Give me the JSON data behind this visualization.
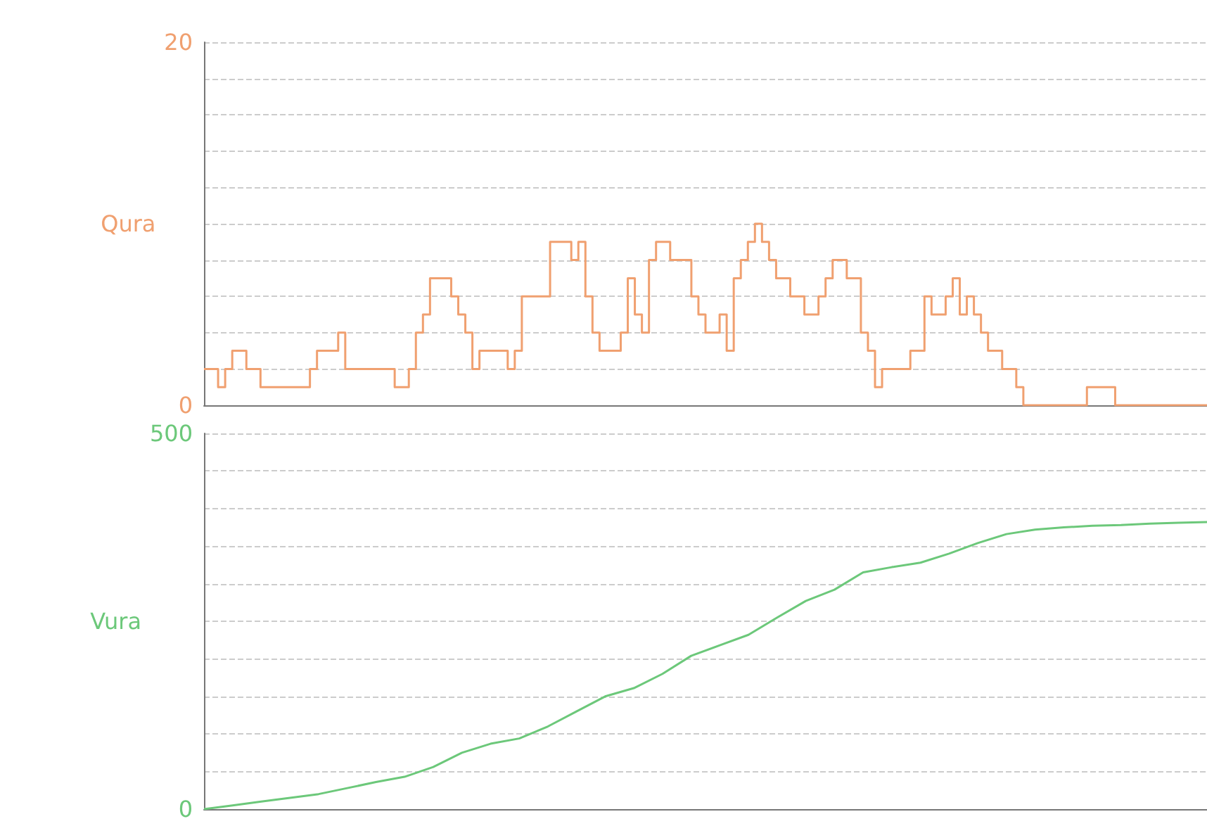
{
  "chart_data": [
    {
      "type": "step",
      "ylabel": "Qura",
      "categories": [
        null,
        null,
        null,
        null,
        null,
        null,
        null,
        null,
        null,
        null,
        null,
        null,
        null,
        null,
        null,
        null,
        null,
        null,
        null,
        null,
        null,
        null,
        null,
        null,
        null,
        null,
        null,
        null,
        null,
        null,
        null,
        null,
        null,
        null,
        null,
        null,
        null,
        null,
        null,
        null,
        null,
        null,
        null,
        null,
        null,
        null,
        null,
        null,
        null,
        null,
        null,
        null,
        null,
        null,
        null,
        null,
        null,
        null,
        null,
        null,
        null,
        null,
        null,
        null,
        null,
        null,
        null,
        null,
        null,
        null,
        null,
        null,
        null,
        null,
        null,
        null,
        null,
        null,
        null,
        null,
        null,
        null,
        null,
        null,
        null,
        null,
        null,
        null,
        null,
        null,
        null,
        null,
        null,
        null,
        null,
        null,
        null,
        null,
        null,
        null,
        null,
        null,
        null,
        null,
        null,
        null,
        null,
        null,
        null,
        null,
        null,
        null,
        null,
        null,
        null,
        null,
        null,
        null,
        null,
        null,
        null,
        null,
        null,
        null,
        null,
        null,
        null,
        null,
        null,
        null,
        null,
        null,
        null,
        null,
        null,
        null,
        null,
        null,
        null,
        null,
        null,
        null,
        null
      ],
      "series": [
        {
          "color": "#f0a070",
          "values": [
            2,
            2,
            1,
            2,
            3,
            3,
            2,
            2,
            1,
            1,
            1,
            1,
            1,
            1,
            1,
            2,
            3,
            3,
            3,
            4,
            2,
            2,
            2,
            2,
            2,
            2,
            2,
            1,
            1,
            2,
            4,
            5,
            7,
            7,
            7,
            6,
            5,
            4,
            2,
            3,
            3,
            3,
            3,
            2,
            3,
            6,
            6,
            6,
            6,
            9,
            9,
            9,
            8,
            9,
            6,
            4,
            3,
            3,
            3,
            4,
            7,
            5,
            4,
            8,
            9,
            9,
            8,
            8,
            8,
            6,
            5,
            4,
            4,
            5,
            3,
            7,
            8,
            9,
            10,
            9,
            8,
            7,
            7,
            6,
            6,
            5,
            5,
            6,
            7,
            8,
            8,
            7,
            7,
            4,
            3,
            1,
            2,
            2,
            2,
            2,
            3,
            3,
            6,
            5,
            5,
            6,
            7,
            5,
            6,
            5,
            4,
            3,
            3,
            2,
            2,
            1,
            0,
            0,
            0,
            0,
            0,
            0,
            0,
            0,
            0,
            1,
            1,
            1,
            1,
            0,
            0,
            0,
            0,
            0,
            0,
            0,
            0,
            0,
            0,
            0,
            0,
            0,
            0
          ]
        }
      ],
      "ylim": [
        0,
        20
      ],
      "yticks": [
        0,
        {
          "value": 2,
          "label": null
        },
        {
          "value": 4,
          "label": null
        },
        {
          "value": 6,
          "label": null
        },
        {
          "value": 8,
          "label": null
        },
        {
          "value": 10,
          "label": null
        },
        {
          "value": 12,
          "label": null
        },
        {
          "value": 14,
          "label": null
        },
        {
          "value": 16,
          "label": null
        },
        {
          "value": 18,
          "label": null
        },
        20
      ],
      "grid": "y",
      "tick_labels": "y"
    },
    {
      "type": "line",
      "ylabel": "Vura",
      "categories": [
        null,
        null,
        null,
        null,
        null,
        null,
        null,
        null,
        null,
        null,
        null,
        null,
        null,
        null,
        null,
        null,
        null,
        null,
        null,
        null,
        null,
        null,
        null,
        null,
        null,
        null,
        null,
        null,
        null,
        null,
        null,
        null,
        null,
        null,
        null,
        null
      ],
      "series": [
        {
          "color": "#6cc87a",
          "values": [
            0,
            5,
            10,
            15,
            20,
            28,
            36,
            43,
            56,
            75,
            87,
            94,
            110,
            130,
            150,
            161,
            180,
            204,
            218,
            232,
            255,
            277,
            292,
            315,
            322,
            328,
            340,
            354,
            366,
            372,
            375,
            377,
            378,
            380,
            381,
            382
          ]
        }
      ],
      "ylim": [
        0,
        500
      ],
      "yticks": [
        0,
        {
          "value": 50,
          "label": null
        },
        {
          "value": 100,
          "label": null
        },
        {
          "value": 150,
          "label": null
        },
        {
          "value": 200,
          "label": null
        },
        {
          "value": 250,
          "label": null
        },
        {
          "value": 300,
          "label": null
        },
        {
          "value": 350,
          "label": null
        },
        {
          "value": 400,
          "label": null
        },
        {
          "value": 450,
          "label": null
        },
        500
      ],
      "grid": "y",
      "tick_labels": "y"
    }
  ]
}
